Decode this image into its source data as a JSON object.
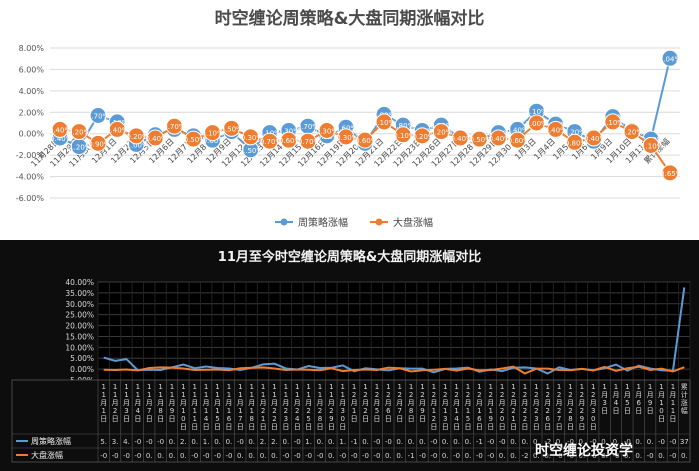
{
  "colors": {
    "series1": "#5b9bd5",
    "series2": "#ed7d31",
    "grid_light": "#d9d9d9",
    "grid_dark": "#3a3a3a"
  },
  "watermark": "时空缠论投资学",
  "chart_data": [
    {
      "type": "line",
      "title": "时空缠论周策略&大盘同期涨幅对比",
      "categories": [
        "11月28日",
        "11月29日",
        "11月30日",
        "12月1日",
        "12月2日",
        "12月5日",
        "12月6日",
        "12月7日",
        "12月8日",
        "12月9日",
        "12月12日",
        "12月13日",
        "12月14日",
        "12月15日",
        "12月16日",
        "12月19日",
        "12月20日",
        "12月21日",
        "12月22日",
        "12月23日",
        "12月26日",
        "12月27日",
        "12月28日",
        "12月29日",
        "12月30日",
        "1月3日",
        "1月4日",
        "1月5日",
        "1月6日",
        "1月9日",
        "1月10日",
        "1月11日",
        "累计涨幅"
      ],
      "ylim": [
        -6,
        8
      ],
      "yticks": [
        "8.00%",
        "6.00%",
        "4.00%",
        "2.00%",
        "0.00%",
        "-2.00%",
        "-4.00%",
        "-6.00%"
      ],
      "legend_position": "bottom",
      "series": [
        {
          "name": "周策略涨幅",
          "values": [
            -0.4,
            -1.2,
            1.7,
            1.1,
            -1.0,
            -0.1,
            0.4,
            -0.2,
            -0.6,
            0.2,
            -1.5,
            0.1,
            0.3,
            0.7,
            -0.2,
            0.6,
            -0.9,
            1.8,
            0.8,
            0.3,
            0.8,
            -0.4,
            -0.5,
            0.1,
            0.4,
            2.1,
            0.9,
            0.2,
            -0.7,
            1.6,
            0.3,
            -0.5,
            7.04
          ]
        },
        {
          "name": "大盘涨幅",
          "values": [
            0.4,
            0.2,
            -0.9,
            0.4,
            -0.2,
            -0.4,
            0.7,
            -0.5,
            0.1,
            0.5,
            -0.3,
            -0.7,
            -0.6,
            -0.7,
            0.3,
            -0.3,
            -0.6,
            1.1,
            -0.1,
            -0.2,
            0.2,
            -0.4,
            -0.5,
            -0.4,
            -0.6,
            1.0,
            0.4,
            -0.8,
            -0.4,
            1.1,
            0.2,
            -1.1,
            -3.65
          ]
        }
      ]
    },
    {
      "type": "line",
      "title": "11月至今时空缠论周策略&大盘同期涨幅对比",
      "categories": [
        "11月1日",
        "11月2日",
        "11月3日",
        "11月4日",
        "11月7日",
        "11月8日",
        "11月9日",
        "11月10日",
        "11月11日",
        "11月14日",
        "11月15日",
        "11月16日",
        "11月17日",
        "11月18日",
        "11月21日",
        "11月22日",
        "11月23日",
        "11月24日",
        "11月25日",
        "11月28日",
        "11月29日",
        "11月30日",
        "12月1日",
        "12月2日",
        "12月5日",
        "12月6日",
        "12月7日",
        "12月8日",
        "12月9日",
        "12月12日",
        "12月13日",
        "12月14日",
        "12月15日",
        "12月16日",
        "12月19日",
        "12月20日",
        "12月21日",
        "12月22日",
        "12月23日",
        "12月26日",
        "12月27日",
        "12月28日",
        "12月29日",
        "12月30日",
        "1月3日",
        "1月4日",
        "1月5日",
        "1月6日",
        "1月9日",
        "1月10日",
        "1月11日",
        "累计涨幅"
      ],
      "ylim": [
        -5,
        40
      ],
      "yticks": [
        "40.00%",
        "35.00%",
        "30.00%",
        "25.00%",
        "20.00%",
        "15.00%",
        "10.00%",
        "5.00%",
        "0.00%",
        "-5.00%"
      ],
      "table_rows": [
        {
          "label": "周策略涨幅",
          "values": [
            "5.",
            "3.",
            "4.",
            "-0",
            "-0",
            "-0",
            "0.",
            "2.",
            "0.",
            "1.",
            "0.",
            "0.",
            "-0",
            "0.",
            "2.",
            "2.",
            "0.",
            "-0",
            "1.",
            "0.",
            "0.",
            "1.",
            "-1",
            "0.",
            "-0",
            "-0",
            "0.",
            "0.",
            "0.",
            "-0",
            "0.",
            "0.",
            "0.",
            "-1",
            "-0",
            "-0",
            "0.",
            "0.",
            "0.",
            "-2",
            "0.",
            "-0",
            "0.",
            "-0",
            "0.",
            "0.",
            "-0",
            "0.",
            "0.",
            "-0",
            "-0",
            "37"
          ]
        },
        {
          "label": "大盘涨幅",
          "values": [
            "-0",
            "-0",
            "-0",
            "-0",
            "0.",
            "0.",
            "0.",
            "0.",
            "-0",
            "-0",
            "-0",
            "-0",
            "0.",
            "0.",
            "0.",
            "0.",
            "-0",
            "-0",
            "-0",
            "-0",
            "0.",
            "-0",
            "-0",
            "-0",
            "-0",
            "0.",
            "0.",
            "-1",
            "-0",
            "-0",
            "0.",
            "-0",
            "0.",
            "-0",
            "-0",
            "0.",
            "0.",
            "-2",
            "0.",
            "0.",
            "-0",
            "-0",
            "0.",
            "-0",
            "0.",
            "-0",
            "0.",
            "0.",
            "-0",
            "0.",
            "-0",
            "0."
          ]
        }
      ],
      "series": [
        {
          "name": "周策略涨幅",
          "values": [
            5.3,
            3.8,
            4.6,
            -0.5,
            -0.3,
            -0.4,
            0.8,
            2.1,
            0.4,
            1.2,
            0.5,
            0.3,
            -0.4,
            0.6,
            2.2,
            2.5,
            0.3,
            -0.2,
            1.4,
            0.5,
            0.6,
            1.7,
            -1.0,
            0.4,
            -0.1,
            -0.6,
            0.4,
            0.2,
            0.2,
            -1.5,
            0.1,
            0.3,
            0.7,
            -1.2,
            -0.2,
            -0.9,
            0.6,
            0.8,
            0.3,
            -2.0,
            0.8,
            -0.4,
            0.1,
            -0.5,
            0.4,
            2.1,
            -0.7,
            1.6,
            0.3,
            -0.5,
            -0.8,
            37.5
          ]
        },
        {
          "name": "大盘涨幅",
          "values": [
            -0.3,
            -0.4,
            -0.2,
            -0.6,
            0.5,
            0.8,
            0.7,
            0.3,
            -0.4,
            -0.3,
            -0.2,
            -0.5,
            0.4,
            0.6,
            0.8,
            0.3,
            -0.4,
            -0.2,
            -0.3,
            -0.5,
            0.4,
            -0.9,
            -0.4,
            -0.2,
            -0.4,
            0.7,
            0.4,
            -1.1,
            -0.5,
            -0.3,
            0.1,
            -0.7,
            0.3,
            -0.6,
            -0.4,
            0.3,
            1.1,
            -2.0,
            0.2,
            0.2,
            -0.4,
            -0.5,
            0.1,
            -0.6,
            1.0,
            -0.8,
            0.4,
            1.1,
            -0.4,
            0.2,
            -1.1,
            0.9
          ]
        }
      ]
    }
  ]
}
